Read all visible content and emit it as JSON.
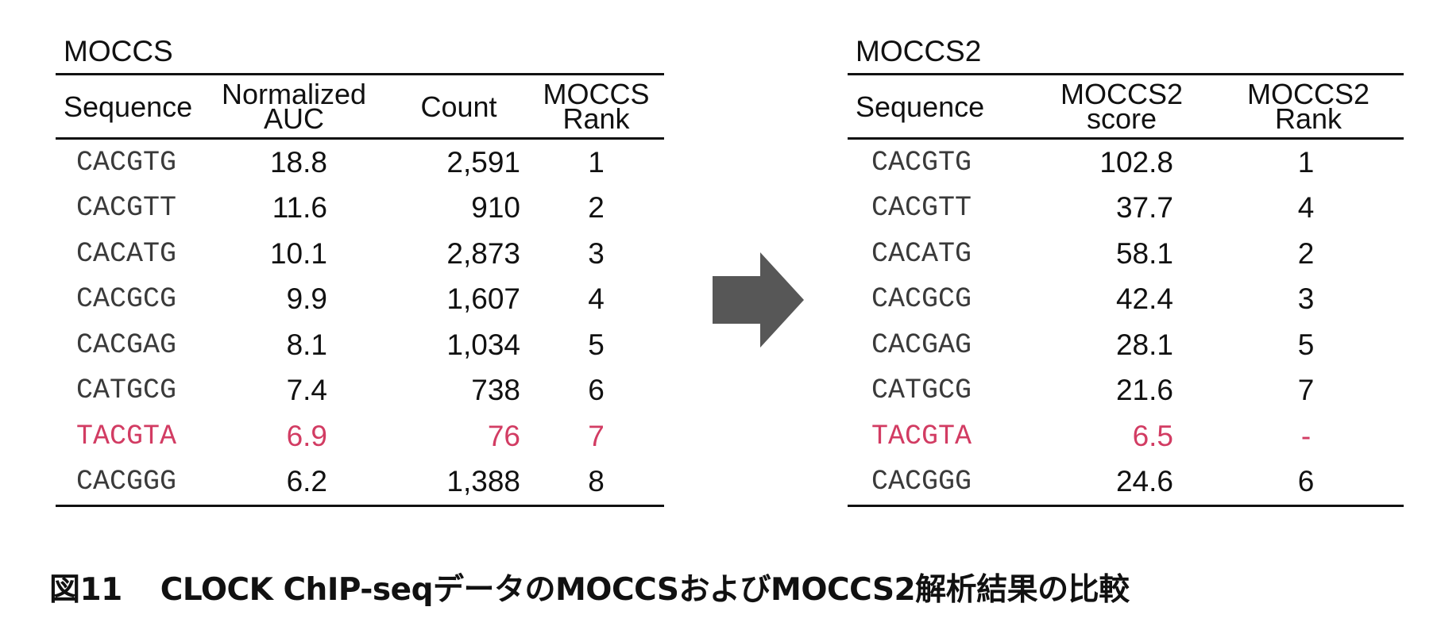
{
  "left_table": {
    "title": "MOCCS",
    "headers": {
      "sequence": "Sequence",
      "normalized_auc_line1": "Normalized",
      "normalized_auc_line2": "AUC",
      "count": "Count",
      "rank_line1": "MOCCS",
      "rank_line2": "Rank"
    },
    "rows": [
      {
        "sequence": "CACGTG",
        "auc": "18.8",
        "count": "2,591",
        "rank": "1"
      },
      {
        "sequence": "CACGTT",
        "auc": "11.6",
        "count": "910",
        "rank": "2"
      },
      {
        "sequence": "CACATG",
        "auc": "10.1",
        "count": "2,873",
        "rank": "3"
      },
      {
        "sequence": "CACGCG",
        "auc": "9.9",
        "count": "1,607",
        "rank": "4"
      },
      {
        "sequence": "CACGAG",
        "auc": "8.1",
        "count": "1,034",
        "rank": "5"
      },
      {
        "sequence": "CATGCG",
        "auc": "7.4",
        "count": "738",
        "rank": "6"
      },
      {
        "sequence": "TACGTA",
        "auc": "6.9",
        "count": "76",
        "rank": "7"
      },
      {
        "sequence": "CACGGG",
        "auc": "6.2",
        "count": "1,388",
        "rank": "8"
      }
    ]
  },
  "right_table": {
    "title": "MOCCS2",
    "headers": {
      "sequence": "Sequence",
      "score_line1": "MOCCS2",
      "score_line2": "score",
      "rank_line1": "MOCCS2",
      "rank_line2": "Rank"
    },
    "rows": [
      {
        "sequence": "CACGTG",
        "score": "102.8",
        "rank": "1"
      },
      {
        "sequence": "CACGTT",
        "score": "37.7",
        "rank": "4"
      },
      {
        "sequence": "CACATG",
        "score": "58.1",
        "rank": "2"
      },
      {
        "sequence": "CACGCG",
        "score": "42.4",
        "rank": "3"
      },
      {
        "sequence": "CACGAG",
        "score": "28.1",
        "rank": "5"
      },
      {
        "sequence": "CATGCG",
        "score": "21.6",
        "rank": "7"
      },
      {
        "sequence": "TACGTA",
        "score": "6.5",
        "rank": "-"
      },
      {
        "sequence": "CACGGG",
        "score": "24.6",
        "rank": "6"
      }
    ]
  },
  "highlight_row_index": 6,
  "colors": {
    "highlight": "#d23c63",
    "arrow": "#575757",
    "text": "#111111"
  },
  "arrow_icon": "right-arrow-icon",
  "caption": {
    "label": "図11",
    "text": "CLOCK ChIP-seqデータのMOCCSおよびMOCCS2解析結果の比較"
  }
}
